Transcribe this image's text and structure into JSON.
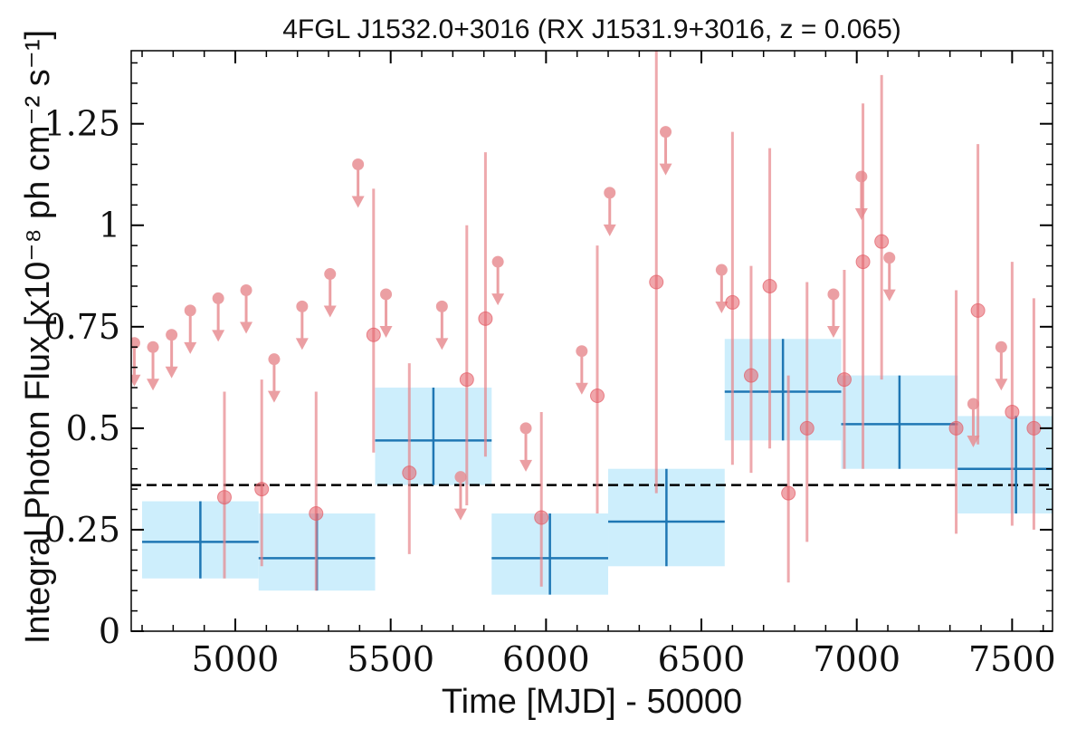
{
  "chart_data": {
    "type": "scatter",
    "title": "4FGL J1532.0+3016 (RX J1531.9+3016, z = 0.065)",
    "xlabel": "Time [MJD] - 50000",
    "ylabel": "Integral Photon Flux [x10⁻⁸ ph cm⁻² s⁻¹]",
    "xlim": [
      4665,
      7630
    ],
    "ylim": [
      0,
      1.43
    ],
    "x_ticks": [
      5000,
      5500,
      6000,
      6500,
      7000,
      7500
    ],
    "x_tick_labels": [
      "5000",
      "5500",
      "6000",
      "6500",
      "7000",
      "7500"
    ],
    "y_ticks": [
      0,
      0.25,
      0.5,
      0.75,
      1,
      1.25
    ],
    "y_tick_labels": [
      "0",
      "0.25",
      "0.5",
      "0.75",
      "1",
      "1.25"
    ],
    "grid": false,
    "mean_flux_line": 0.36,
    "colors": {
      "points": "#e8858b",
      "upper_limits": "#e88f94",
      "bins_fill": "#cdeefc",
      "bins_line": "#1f77b4",
      "mean_line": "#000000"
    },
    "series": [
      {
        "role": "upper_limits",
        "x": [
          4675,
          4735,
          4795,
          4855,
          4945,
          5035,
          5125,
          5215,
          5305,
          5395,
          5485,
          5665,
          5725,
          5845,
          5935,
          6115,
          6205,
          6385,
          6565,
          6925,
          7015,
          7105,
          7375,
          7465
        ],
        "y": [
          0.71,
          0.7,
          0.73,
          0.79,
          0.82,
          0.84,
          0.67,
          0.8,
          0.88,
          1.15,
          0.83,
          0.8,
          0.38,
          0.91,
          0.5,
          0.69,
          1.08,
          1.23,
          0.89,
          0.83,
          1.12,
          0.92,
          0.56,
          0.7
        ]
      },
      {
        "role": "detections",
        "x": [
          4965,
          5085,
          5260,
          5445,
          5560,
          5745,
          5805,
          5985,
          6165,
          6355,
          6600,
          6660,
          6720,
          6780,
          6840,
          6960,
          7020,
          7080,
          7320,
          7390,
          7500,
          7570
        ],
        "y": [
          0.33,
          0.35,
          0.29,
          0.73,
          0.39,
          0.62,
          0.77,
          0.28,
          0.58,
          0.86,
          0.81,
          0.63,
          0.85,
          0.34,
          0.5,
          0.62,
          0.91,
          0.96,
          0.5,
          0.79,
          0.54,
          0.5
        ],
        "y_err_low": [
          0.2,
          0.19,
          0.19,
          0.29,
          0.2,
          0.31,
          0.34,
          0.17,
          0.29,
          0.52,
          0.4,
          0.24,
          0.4,
          0.22,
          0.28,
          0.22,
          0.51,
          0.34,
          0.26,
          0.33,
          0.28,
          0.25
        ],
        "y_err_high": [
          0.26,
          0.27,
          0.3,
          0.36,
          0.27,
          0.38,
          0.41,
          0.26,
          0.37,
          0.57,
          0.42,
          0.27,
          0.34,
          0.29,
          0.36,
          0.27,
          0.39,
          0.41,
          0.34,
          0.41,
          0.37,
          0.32
        ]
      },
      {
        "role": "binned_flux",
        "x_start": [
          4700,
          5075,
          5450,
          5825,
          6200,
          6575,
          6950,
          7325
        ],
        "x_end": [
          5075,
          5450,
          5825,
          6200,
          6575,
          6950,
          7325,
          7700
        ],
        "y": [
          0.22,
          0.18,
          0.47,
          0.18,
          0.27,
          0.59,
          0.51,
          0.4
        ],
        "y_low": [
          0.13,
          0.1,
          0.36,
          0.09,
          0.16,
          0.47,
          0.4,
          0.29
        ],
        "y_high": [
          0.32,
          0.29,
          0.6,
          0.29,
          0.4,
          0.72,
          0.63,
          0.53
        ]
      }
    ]
  }
}
